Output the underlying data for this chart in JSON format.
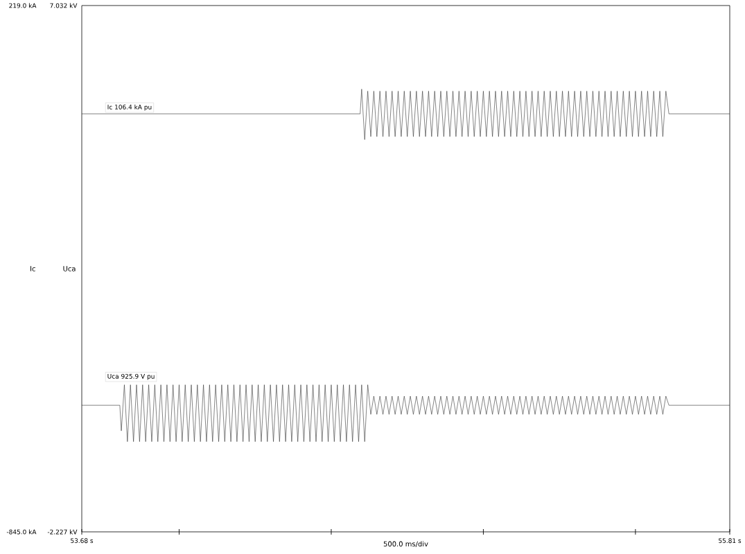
{
  "chart_data": {
    "type": "line",
    "xlabel": "500.0 ms/div",
    "ylabel": "Ic",
    "y2label": "Uca",
    "xlim": [
      53.68,
      55.81
    ],
    "xticks": [
      {
        "value": 53.68,
        "label": "53.68 s"
      },
      {
        "value": 54.0,
        "label": null
      },
      {
        "value": 54.5,
        "label": null
      },
      {
        "value": 55.0,
        "label": null
      },
      {
        "value": 55.5,
        "label": null
      },
      {
        "value": 55.81,
        "label": "55.81 s"
      }
    ],
    "ylim": [
      -845.0,
      219.0
    ],
    "yticks": [
      {
        "value": -845.0,
        "label": "-845.0 kA"
      },
      {
        "value": 219.0,
        "label": "219.0 kA"
      }
    ],
    "y2lim": [
      -2.227,
      7.032
    ],
    "y2ticks": [
      {
        "value": -2.227,
        "label": "-2.227 kV"
      },
      {
        "value": 7.032,
        "label": "7.032 kV"
      }
    ],
    "series": [
      {
        "name": "Ic 106.4 kA pu",
        "color": "#333333",
        "axis": "y",
        "x": [
          53.68,
          54.595,
          54.6,
          54.61,
          54.62,
          54.63,
          54.64,
          54.65,
          54.66,
          54.67,
          54.68,
          54.69,
          54.7,
          54.71,
          54.72,
          54.73,
          54.74,
          54.75,
          54.76,
          54.77,
          54.78,
          54.79,
          54.8,
          54.81,
          54.82,
          54.83,
          54.84,
          54.85,
          54.86,
          54.87,
          54.88,
          54.89,
          54.9,
          54.91,
          54.92,
          54.93,
          54.94,
          54.95,
          54.96,
          54.97,
          54.98,
          54.99,
          55.0,
          55.01,
          55.02,
          55.03,
          55.04,
          55.05,
          55.06,
          55.07,
          55.08,
          55.09,
          55.1,
          55.11,
          55.12,
          55.13,
          55.14,
          55.15,
          55.16,
          55.17,
          55.18,
          55.19,
          55.2,
          55.21,
          55.22,
          55.23,
          55.24,
          55.25,
          55.26,
          55.27,
          55.28,
          55.29,
          55.3,
          55.31,
          55.32,
          55.33,
          55.34,
          55.35,
          55.36,
          55.37,
          55.38,
          55.39,
          55.4,
          55.41,
          55.42,
          55.43,
          55.44,
          55.45,
          55.46,
          55.47,
          55.48,
          55.49,
          55.5,
          55.51,
          55.52,
          55.53,
          55.54,
          55.55,
          55.56,
          55.57,
          55.58,
          55.59,
          55.6,
          55.61,
          55.81
        ],
        "values": [
          0,
          0,
          50,
          -52,
          46,
          -46,
          46,
          -46,
          46,
          -46,
          46,
          -46,
          46,
          -46,
          46,
          -46,
          46,
          -46,
          46,
          -46,
          46,
          -46,
          46,
          -46,
          46,
          -46,
          46,
          -46,
          46,
          -46,
          46,
          -46,
          46,
          -46,
          46,
          -46,
          46,
          -46,
          46,
          -46,
          46,
          -46,
          46,
          -46,
          46,
          -46,
          46,
          -46,
          46,
          -46,
          46,
          -46,
          46,
          -46,
          46,
          -46,
          46,
          -46,
          46,
          -46,
          46,
          -46,
          46,
          -46,
          46,
          -46,
          46,
          -46,
          46,
          -46,
          46,
          -46,
          46,
          -46,
          46,
          -46,
          46,
          -46,
          46,
          -46,
          46,
          -46,
          46,
          -46,
          46,
          -46,
          46,
          -46,
          46,
          -46,
          46,
          -46,
          46,
          -46,
          46,
          -46,
          46,
          -46,
          46,
          -46,
          46,
          -46,
          46,
          0,
          0
        ]
      },
      {
        "name": "Uca 925.9 V pu",
        "color": "#333333",
        "axis": "y2",
        "x": [
          53.68,
          53.805,
          53.81,
          53.82,
          53.83,
          53.84,
          53.85,
          53.86,
          53.87,
          53.88,
          53.89,
          53.9,
          53.91,
          53.92,
          53.93,
          53.94,
          53.95,
          53.96,
          53.97,
          53.98,
          53.99,
          54.0,
          54.01,
          54.02,
          54.03,
          54.04,
          54.05,
          54.06,
          54.07,
          54.08,
          54.09,
          54.1,
          54.11,
          54.12,
          54.13,
          54.14,
          54.15,
          54.16,
          54.17,
          54.18,
          54.19,
          54.2,
          54.21,
          54.22,
          54.23,
          54.24,
          54.25,
          54.26,
          54.27,
          54.28,
          54.29,
          54.3,
          54.31,
          54.32,
          54.33,
          54.34,
          54.35,
          54.36,
          54.37,
          54.38,
          54.39,
          54.4,
          54.41,
          54.42,
          54.43,
          54.44,
          54.45,
          54.46,
          54.47,
          54.48,
          54.49,
          54.5,
          54.51,
          54.52,
          54.53,
          54.54,
          54.55,
          54.56,
          54.57,
          54.58,
          54.59,
          54.6,
          54.61,
          54.62,
          54.63,
          54.64,
          54.65,
          54.66,
          54.67,
          54.68,
          54.69,
          54.7,
          54.71,
          54.72,
          54.73,
          54.74,
          54.75,
          54.76,
          54.77,
          54.78,
          54.79,
          54.8,
          54.81,
          54.82,
          54.83,
          54.84,
          54.85,
          54.86,
          54.87,
          54.88,
          54.89,
          54.9,
          54.91,
          54.92,
          54.93,
          54.94,
          54.95,
          54.96,
          54.97,
          54.98,
          54.99,
          55.0,
          55.01,
          55.02,
          55.03,
          55.04,
          55.05,
          55.06,
          55.07,
          55.08,
          55.09,
          55.1,
          55.11,
          55.12,
          55.13,
          55.14,
          55.15,
          55.16,
          55.17,
          55.18,
          55.19,
          55.2,
          55.21,
          55.22,
          55.23,
          55.24,
          55.25,
          55.26,
          55.27,
          55.28,
          55.29,
          55.3,
          55.31,
          55.32,
          55.33,
          55.34,
          55.35,
          55.36,
          55.37,
          55.38,
          55.39,
          55.4,
          55.41,
          55.42,
          55.43,
          55.44,
          55.45,
          55.46,
          55.47,
          55.48,
          55.49,
          55.5,
          55.51,
          55.52,
          55.53,
          55.54,
          55.55,
          55.56,
          55.57,
          55.58,
          55.59,
          55.6,
          55.61,
          55.81
        ],
        "values": [
          0,
          0,
          -0.45,
          0.36,
          -0.64,
          0.36,
          -0.64,
          0.36,
          -0.64,
          0.36,
          -0.64,
          0.36,
          -0.64,
          0.36,
          -0.64,
          0.36,
          -0.64,
          0.36,
          -0.64,
          0.36,
          -0.64,
          0.36,
          -0.64,
          0.36,
          -0.64,
          0.36,
          -0.64,
          0.36,
          -0.64,
          0.36,
          -0.64,
          0.36,
          -0.64,
          0.36,
          -0.64,
          0.36,
          -0.64,
          0.36,
          -0.64,
          0.36,
          -0.64,
          0.36,
          -0.64,
          0.36,
          -0.64,
          0.36,
          -0.64,
          0.36,
          -0.64,
          0.36,
          -0.64,
          0.36,
          -0.64,
          0.36,
          -0.64,
          0.36,
          -0.64,
          0.36,
          -0.64,
          0.36,
          -0.64,
          0.36,
          -0.64,
          0.36,
          -0.64,
          0.36,
          -0.64,
          0.36,
          -0.64,
          0.36,
          -0.64,
          0.36,
          -0.64,
          0.36,
          -0.64,
          0.36,
          -0.64,
          0.36,
          -0.64,
          0.36,
          -0.64,
          0.36,
          -0.64,
          0.36,
          -0.16,
          0.16,
          -0.16,
          0.16,
          -0.16,
          0.16,
          -0.16,
          0.16,
          -0.16,
          0.16,
          -0.16,
          0.16,
          -0.16,
          0.16,
          -0.16,
          0.16,
          -0.16,
          0.16,
          -0.16,
          0.16,
          -0.16,
          0.16,
          -0.16,
          0.16,
          -0.16,
          0.16,
          -0.16,
          0.16,
          -0.16,
          0.16,
          -0.16,
          0.16,
          -0.16,
          0.16,
          -0.16,
          0.16,
          -0.16,
          0.16,
          -0.16,
          0.16,
          -0.16,
          0.16,
          -0.16,
          0.16,
          -0.16,
          0.16,
          -0.16,
          0.16,
          -0.16,
          0.16,
          -0.16,
          0.16,
          -0.16,
          0.16,
          -0.16,
          0.16,
          -0.16,
          0.16,
          -0.16,
          0.16,
          -0.16,
          0.16,
          -0.16,
          0.16,
          -0.16,
          0.16,
          -0.16,
          0.16,
          -0.16,
          0.16,
          -0.16,
          0.16,
          -0.16,
          0.16,
          -0.16,
          0.16,
          -0.16,
          0.16,
          -0.16,
          0.16,
          -0.16,
          0.16,
          -0.16,
          0.16,
          -0.16,
          0.16,
          -0.16,
          0.16,
          -0.16,
          0.16,
          -0.16,
          0.16,
          -0.16,
          0.16,
          -0.16,
          0.16,
          -0.16,
          0.16,
          0,
          0
        ]
      }
    ]
  }
}
